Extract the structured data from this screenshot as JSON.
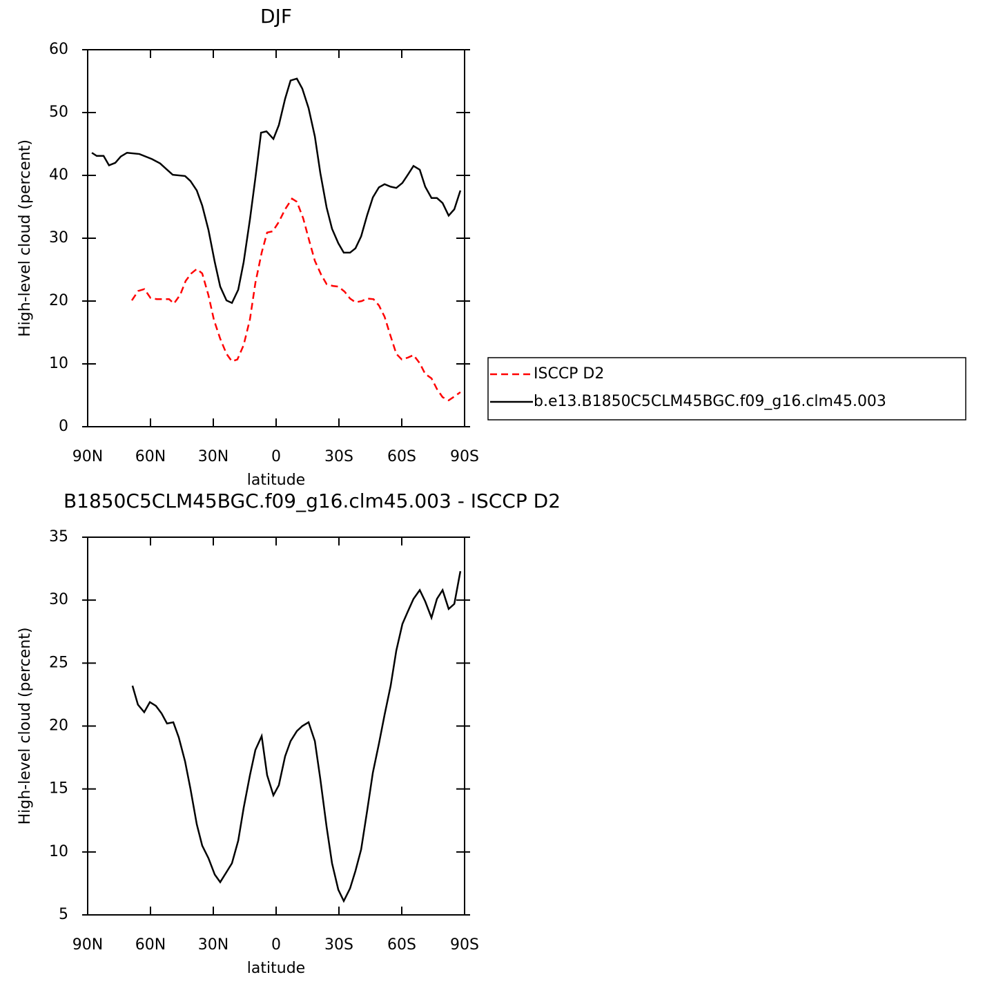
{
  "chart_data": [
    {
      "type": "line",
      "title": "DJF",
      "xlabel": "latitude",
      "ylabel": "High-level cloud (percent)",
      "xlim": [
        90,
        -90
      ],
      "xticks": [
        {
          "value": 90,
          "label": "90N"
        },
        {
          "value": 60,
          "label": "60N"
        },
        {
          "value": 30,
          "label": "30N"
        },
        0,
        {
          "value": -30,
          "label": "30S"
        },
        {
          "value": -60,
          "label": "60S"
        },
        {
          "value": -90,
          "label": "90S"
        }
      ],
      "ylim": [
        0,
        60
      ],
      "yticks": [
        0,
        10,
        20,
        30,
        40,
        50,
        60
      ],
      "legend": "right",
      "series": [
        {
          "name": "ISCCP D2",
          "color": "#ff0000",
          "line_style": "dashed",
          "x": [
            68.9,
            65.9,
            62.9,
            60.0,
            57.0,
            54.1,
            51.1,
            48.8,
            45.8,
            43.2,
            40.5,
            37.9,
            35.3,
            32.3,
            29.7,
            26.7,
            23.7,
            21.1,
            18.5,
            15.5,
            12.5,
            9.9,
            6.9,
            4.3,
            1.6,
            -1.3,
            -4.3,
            -7.6,
            -9.9,
            -12.9,
            -15.9,
            -18.5,
            -21.5,
            -24.1,
            -27.1,
            -29.7,
            -32.7,
            -35.3,
            -37.9,
            -40.9,
            -43.5,
            -46.5,
            -49.1,
            -51.8,
            -54.4,
            -57.4,
            -60.0,
            -62.9,
            -65.6,
            -68.6,
            -71.2,
            -74.2,
            -76.8,
            -79.5,
            -82.4,
            -85.1,
            -88.0
          ],
          "values": [
            20.1,
            21.6,
            21.9,
            20.5,
            20.3,
            20.3,
            20.3,
            19.6,
            21.0,
            23.2,
            24.4,
            25.1,
            24.4,
            20.9,
            17.0,
            14.0,
            11.6,
            10.4,
            10.7,
            13.0,
            17.1,
            22.9,
            27.7,
            30.9,
            31.1,
            32.6,
            34.6,
            36.3,
            35.8,
            33.2,
            29.5,
            26.4,
            24.2,
            22.7,
            22.4,
            22.3,
            21.5,
            20.4,
            19.8,
            20.0,
            20.4,
            20.3,
            19.3,
            17.5,
            14.7,
            11.6,
            10.7,
            11.0,
            11.4,
            10.1,
            8.4,
            7.7,
            6.0,
            4.7,
            4.2,
            4.8,
            5.5
          ]
        },
        {
          "name": "b.e13.B1850C5CLM45BGC.f09_g16.clm45.003",
          "color": "#000000",
          "line_style": "solid",
          "x": [
            88,
            85.7,
            82.4,
            79.8,
            76.8,
            74.2,
            71.2,
            65.3,
            59.3,
            55.4,
            52.4,
            49.4,
            43.5,
            40.9,
            37.9,
            35.3,
            32.3,
            29.3,
            26.7,
            23.7,
            21.1,
            18.1,
            15.5,
            12.5,
            9.9,
            7.2,
            4.6,
            1.3,
            -1.3,
            -4.3,
            -6.9,
            -9.9,
            -12.5,
            -15.5,
            -18.5,
            -21.1,
            -24.1,
            -26.7,
            -29.7,
            -32.3,
            -35.3,
            -37.9,
            -40.6,
            -43.5,
            -46.2,
            -49.1,
            -51.8,
            -54.7,
            -57.4,
            -60.3,
            -62.9,
            -65.6,
            -68.6,
            -71.2,
            -74.2,
            -76.8,
            -79.5,
            -82.4,
            -85.1,
            -88.0
          ],
          "values": [
            43.6,
            43.1,
            43.1,
            41.6,
            42.0,
            43.0,
            43.6,
            43.4,
            42.6,
            41.9,
            41.0,
            40.1,
            39.9,
            39.1,
            37.6,
            35.2,
            31.3,
            26.2,
            22.3,
            20.1,
            19.7,
            21.8,
            26.2,
            33.0,
            39.6,
            46.8,
            47.0,
            45.8,
            48.0,
            52.2,
            55.1,
            55.4,
            53.8,
            50.7,
            46.2,
            40.4,
            34.9,
            31.5,
            29.2,
            27.7,
            27.7,
            28.4,
            30.3,
            33.7,
            36.5,
            38.1,
            38.6,
            38.2,
            38.0,
            38.8,
            40.1,
            41.5,
            40.9,
            38.2,
            36.4,
            36.4,
            35.6,
            33.6,
            34.6,
            37.6
          ]
        }
      ]
    },
    {
      "type": "line",
      "title": "B1850C5CLM45BGC.f09_g16.clm45.003 - ISCCP D2",
      "xlabel": "latitude",
      "ylabel": "High-level cloud (percent)",
      "xlim": [
        90,
        -90
      ],
      "xticks": [
        {
          "value": 90,
          "label": "90N"
        },
        {
          "value": 60,
          "label": "60N"
        },
        {
          "value": 30,
          "label": "30N"
        },
        0,
        {
          "value": -30,
          "label": "30S"
        },
        {
          "value": -60,
          "label": "60S"
        },
        {
          "value": -90,
          "label": "90S"
        }
      ],
      "ylim": [
        5,
        35
      ],
      "yticks": [
        5,
        10,
        15,
        20,
        25,
        30,
        35
      ],
      "series": [
        {
          "color": "#000000",
          "line_style": "solid",
          "x": [
            68.6,
            66.0,
            63.0,
            60.3,
            57.4,
            54.7,
            52.1,
            49.1,
            46.5,
            43.5,
            40.9,
            37.9,
            35.3,
            32.3,
            29.3,
            26.7,
            23.7,
            21.1,
            18.1,
            15.5,
            12.5,
            9.9,
            6.9,
            4.3,
            1.3,
            -1.3,
            -4.3,
            -6.9,
            -9.9,
            -12.5,
            -15.5,
            -18.5,
            -21.1,
            -24.1,
            -26.7,
            -29.7,
            -32.3,
            -35.3,
            -37.9,
            -40.6,
            -43.5,
            -46.2,
            -49.1,
            -51.8,
            -54.7,
            -57.4,
            -60.3,
            -62.9,
            -65.6,
            -68.6,
            -71.2,
            -74.2,
            -76.8,
            -79.5,
            -82.4,
            -85.1,
            -88.0
          ],
          "values": [
            23.2,
            21.7,
            21.1,
            21.9,
            21.6,
            21.0,
            20.2,
            20.3,
            19.1,
            17.2,
            15.0,
            12.2,
            10.5,
            9.5,
            8.2,
            7.6,
            8.4,
            9.1,
            10.9,
            13.5,
            16.1,
            18.1,
            19.2,
            16.1,
            14.5,
            15.3,
            17.6,
            18.8,
            19.6,
            20.0,
            20.3,
            18.8,
            15.8,
            12.0,
            9.1,
            7.0,
            6.1,
            7.1,
            8.5,
            10.2,
            13.3,
            16.3,
            18.6,
            20.9,
            23.2,
            26.0,
            28.1,
            29.1,
            30.1,
            30.8,
            29.9,
            28.6,
            30.1,
            30.8,
            29.3,
            29.7,
            32.3
          ]
        }
      ]
    }
  ]
}
